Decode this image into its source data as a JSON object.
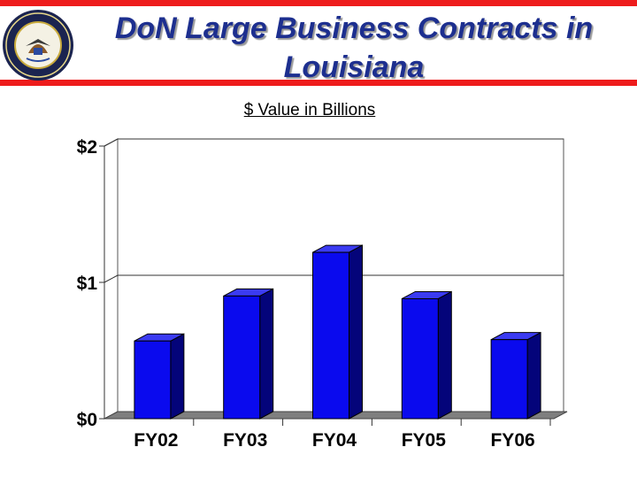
{
  "header": {
    "title": "DoN Large Business Contracts in Louisiana",
    "subtitle": "$ Value in Billions"
  },
  "colors": {
    "accent_red": "#ee1c1c",
    "title_blue": "#1d2f8f",
    "bar_front": "#0a0aee",
    "bar_side": "#04047a",
    "bar_top": "#3b3bf2",
    "floor": "#7f7f7f"
  },
  "chart_data": {
    "type": "bar",
    "title": "",
    "xlabel": "",
    "ylabel": "",
    "categories": [
      "FY02",
      "FY03",
      "FY04",
      "FY05",
      "FY06"
    ],
    "values": [
      0.57,
      0.9,
      1.22,
      0.88,
      0.58
    ],
    "ylim": [
      0,
      2
    ],
    "yticks": [
      0,
      1,
      2
    ],
    "ytick_labels": [
      "$0",
      "$1",
      "$2"
    ],
    "grid": true,
    "style": "3d-column"
  }
}
